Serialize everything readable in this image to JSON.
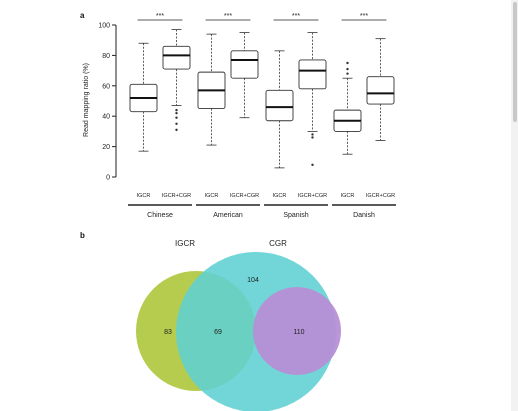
{
  "chart_data": [
    {
      "type": "box",
      "panel_label": "a",
      "ylabel": "Read mapping ratio (%)",
      "ylim": [
        0,
        100
      ],
      "yticks": [
        0,
        20,
        40,
        60,
        80,
        100
      ],
      "groups": [
        {
          "name": "Chinese",
          "significance": "***",
          "boxes": [
            {
              "category": "IGCR",
              "whisker_low": 17,
              "q1": 43,
              "median": 52,
              "q3": 61,
              "whisker_high": 88,
              "outliers": []
            },
            {
              "category": "IGCR+CGR",
              "whisker_low": 47,
              "q1": 71,
              "median": 80,
              "q3": 86,
              "whisker_high": 97,
              "outliers": [
                31,
                35,
                39,
                42,
                44
              ]
            }
          ]
        },
        {
          "name": "American",
          "significance": "***",
          "boxes": [
            {
              "category": "IGCR",
              "whisker_low": 21,
              "q1": 45,
              "median": 57,
              "q3": 69,
              "whisker_high": 94,
              "outliers": []
            },
            {
              "category": "IGCR+CGR",
              "whisker_low": 39,
              "q1": 65,
              "median": 77,
              "q3": 83,
              "whisker_high": 95,
              "outliers": []
            }
          ]
        },
        {
          "name": "Spanish",
          "significance": "***",
          "boxes": [
            {
              "category": "IGCR",
              "whisker_low": 6,
              "q1": 37,
              "median": 46,
              "q3": 57,
              "whisker_high": 83,
              "outliers": []
            },
            {
              "category": "IGCR+CGR",
              "whisker_low": 30,
              "q1": 58,
              "median": 70,
              "q3": 77,
              "whisker_high": 95,
              "outliers": [
                8,
                26,
                28
              ]
            }
          ]
        },
        {
          "name": "Danish",
          "significance": "***",
          "boxes": [
            {
              "category": "IGCR",
              "whisker_low": 15,
              "q1": 30,
              "median": 37,
              "q3": 44,
              "whisker_high": 65,
              "outliers": [
                68,
                71,
                75
              ]
            },
            {
              "category": "IGCR+CGR",
              "whisker_low": 24,
              "q1": 48,
              "median": 55,
              "q3": 66,
              "whisker_high": 91,
              "outliers": []
            }
          ]
        }
      ]
    },
    {
      "type": "venn",
      "panel_label": "b",
      "sets": [
        {
          "name": "IGCR",
          "color": "#b5cc4e"
        },
        {
          "name": "CGR",
          "color": "#5fd0d3"
        },
        {
          "name": "",
          "color": "#b68fd6"
        }
      ],
      "regions": [
        {
          "label": "IGCR only",
          "value": "83"
        },
        {
          "label": "IGCR ∩ CGR",
          "value": "69"
        },
        {
          "label": "CGR only",
          "value": "104"
        },
        {
          "label": "inner set",
          "value": "110"
        }
      ]
    }
  ],
  "colors": {
    "axis": "#222222",
    "box_fill": "#ffffff",
    "median": "#111111",
    "background": "#ffffff"
  }
}
